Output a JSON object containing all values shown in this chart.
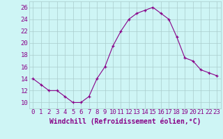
{
  "hours": [
    0,
    1,
    2,
    3,
    4,
    5,
    6,
    7,
    8,
    9,
    10,
    11,
    12,
    13,
    14,
    15,
    16,
    17,
    18,
    19,
    20,
    21,
    22,
    23
  ],
  "values": [
    14,
    13,
    12,
    12,
    11,
    10,
    10,
    11,
    14,
    16,
    19.5,
    22,
    24,
    25,
    25.5,
    26,
    25,
    24,
    21,
    17.5,
    17,
    15.5,
    15,
    14.5
  ],
  "line_color": "#880088",
  "marker_color": "#880088",
  "bg_color": "#cef5f5",
  "grid_color": "#aacccc",
  "xlabel": "Windchill (Refroidissement éolien,°C)",
  "ylabel_ticks": [
    10,
    12,
    14,
    16,
    18,
    20,
    22,
    24,
    26
  ],
  "ylim": [
    9,
    27
  ],
  "xlim": [
    -0.5,
    23.5
  ],
  "tick_label_fontsize": 6.5,
  "xlabel_fontsize": 7,
  "axis_text_color": "#880088"
}
